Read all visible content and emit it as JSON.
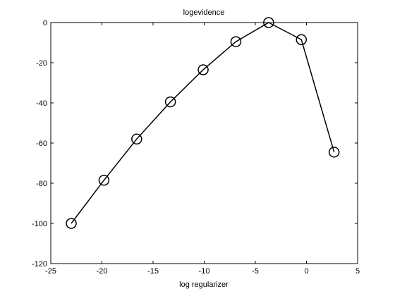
{
  "chart_data": {
    "type": "line",
    "title": "logevidence",
    "xlabel": "log regularizer",
    "ylabel": "",
    "xlim": [
      -25,
      5
    ],
    "ylim": [
      -120,
      0
    ],
    "xticks": [
      -25,
      -20,
      -15,
      -10,
      -5,
      0,
      5
    ],
    "yticks": [
      0,
      -20,
      -40,
      -60,
      -80,
      -100,
      -120
    ],
    "grid": false,
    "marker": "circle-open",
    "line_color": "#000000",
    "x": [
      -23,
      -19.8,
      -16.6,
      -13.3,
      -10.1,
      -6.9,
      -3.7,
      -0.5,
      2.7
    ],
    "y": [
      -100,
      -78.5,
      -58,
      -39.5,
      -23.5,
      -9.5,
      0,
      -8.5,
      -64.5
    ]
  }
}
